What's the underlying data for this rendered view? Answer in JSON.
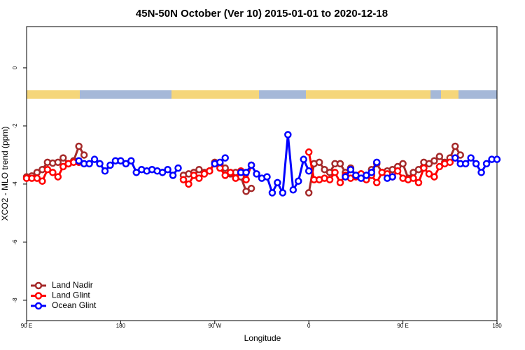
{
  "chart_data": {
    "type": "line",
    "title": "45N-50N October (Ver 10)   2015-01-01 to 2020-12-18",
    "xlabel": "Longitude",
    "ylabel": "XCO2 - MLO trend (ppm)",
    "xlim": [
      90,
      540
    ],
    "ylim": [
      -8.7,
      1.42
    ],
    "xticks": [
      {
        "value": 90,
        "label": "90 E"
      },
      {
        "value": 180,
        "label": "180"
      },
      {
        "value": 270,
        "label": "90 W"
      },
      {
        "value": 360,
        "label": "0"
      },
      {
        "value": 450,
        "label": "90 E"
      },
      {
        "value": 540,
        "label": "180"
      }
    ],
    "yticks": [
      0,
      -2,
      -4,
      -6,
      -8
    ],
    "legend": "lower left",
    "series": [
      {
        "name": "Land Nadir",
        "color": "#a52a2a",
        "x": [
          90,
          95,
          100,
          105,
          110,
          115,
          120,
          125,
          130,
          135,
          140,
          145,
          null,
          240,
          245,
          250,
          255,
          260,
          265,
          270,
          275,
          280,
          285,
          290,
          295,
          300,
          305,
          null,
          360,
          365,
          370,
          375,
          380,
          385,
          390,
          395,
          400,
          405,
          410,
          415,
          420,
          425,
          430,
          435,
          440,
          445,
          450,
          455,
          460,
          465,
          470,
          475,
          480,
          485,
          490,
          495,
          500,
          505
        ],
        "values": [
          -3.75,
          -3.72,
          -3.6,
          -3.5,
          -3.25,
          -3.28,
          -3.25,
          -3.1,
          -3.3,
          -3.2,
          -2.7,
          -3.0,
          null,
          -3.7,
          -3.65,
          -3.6,
          -3.5,
          -3.6,
          -3.55,
          -3.25,
          -3.3,
          -3.45,
          -3.65,
          -3.6,
          -3.75,
          -4.25,
          -4.15,
          null,
          -4.3,
          -3.3,
          -3.25,
          -3.5,
          -3.6,
          -3.3,
          -3.3,
          -3.6,
          -3.45,
          -3.7,
          -3.65,
          -3.8,
          -3.5,
          -3.3,
          -3.6,
          -3.55,
          -3.5,
          -3.4,
          -3.3,
          -3.8,
          -3.6,
          -3.5,
          -3.25,
          -3.3,
          -3.2,
          -3.05,
          -3.25,
          -3.1,
          -2.7,
          -3.0
        ]
      },
      {
        "name": "Land Glint",
        "color": "#ff0000",
        "x": [
          90,
          95,
          100,
          105,
          110,
          115,
          120,
          125,
          130,
          135,
          140,
          null,
          240,
          245,
          250,
          255,
          260,
          265,
          270,
          275,
          280,
          285,
          290,
          295,
          300,
          305,
          null,
          360,
          365,
          370,
          375,
          380,
          385,
          390,
          395,
          400,
          405,
          410,
          415,
          420,
          425,
          430,
          435,
          440,
          445,
          450,
          455,
          460,
          465,
          470,
          475,
          480,
          485,
          490,
          495,
          500
        ],
        "values": [
          -3.8,
          -3.8,
          -3.8,
          -3.9,
          -3.5,
          -3.6,
          -3.75,
          -3.4,
          -3.3,
          -3.25,
          -3.25,
          null,
          -3.85,
          -4.0,
          -3.7,
          -3.8,
          -3.65,
          -3.55,
          -3.3,
          -3.45,
          -3.7,
          -3.6,
          -3.8,
          -3.55,
          -3.85,
          -3.35,
          null,
          -2.9,
          -3.85,
          -3.85,
          -3.8,
          -3.85,
          -3.6,
          -3.95,
          -3.7,
          -3.8,
          -3.75,
          -3.65,
          -3.85,
          -3.7,
          -3.95,
          -3.6,
          -3.65,
          -3.75,
          -3.55,
          -3.8,
          -3.85,
          -3.8,
          -3.95,
          -3.45,
          -3.65,
          -3.75,
          -3.4,
          -3.3,
          -3.25,
          -3.1
        ]
      },
      {
        "name": "Ocean Glint",
        "color": "#0000ff",
        "x": [
          140,
          145,
          150,
          155,
          160,
          165,
          170,
          175,
          180,
          185,
          190,
          195,
          200,
          205,
          210,
          215,
          220,
          225,
          230,
          235,
          null,
          270,
          275,
          280,
          null,
          295,
          300,
          305,
          310,
          315,
          320,
          325,
          330,
          335,
          340,
          345,
          350,
          355,
          360,
          null,
          395,
          400,
          405,
          410,
          415,
          420,
          425,
          null,
          435,
          440,
          null,
          500,
          505,
          510,
          515,
          520,
          525,
          530,
          535,
          540
        ],
        "values": [
          -3.2,
          -3.3,
          -3.3,
          -3.15,
          -3.3,
          -3.55,
          -3.35,
          -3.2,
          -3.2,
          -3.3,
          -3.2,
          -3.6,
          -3.5,
          -3.55,
          -3.5,
          -3.55,
          -3.6,
          -3.5,
          -3.7,
          -3.45,
          null,
          -3.3,
          -3.25,
          -3.1,
          null,
          -3.6,
          -3.6,
          -3.35,
          -3.65,
          -3.8,
          -3.75,
          -4.3,
          -3.95,
          -4.3,
          -2.3,
          -4.2,
          -3.9,
          -3.15,
          -3.55,
          null,
          -3.75,
          -3.5,
          -3.7,
          -3.8,
          -3.7,
          -3.6,
          -3.25,
          null,
          -3.8,
          -3.75,
          null,
          -3.1,
          -3.3,
          -3.3,
          -3.1,
          -3.3,
          -3.6,
          -3.3,
          -3.15,
          -3.15
        ]
      }
    ]
  }
}
